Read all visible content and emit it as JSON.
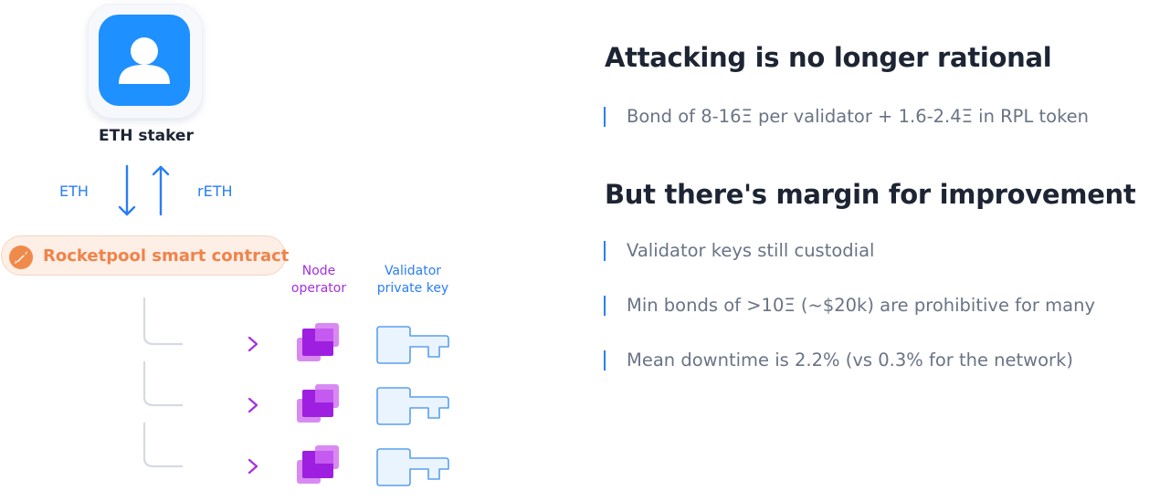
{
  "diagram": {
    "staker_label": "ETH staker",
    "eth_label": "ETH",
    "reth_label": "rETH",
    "contract_label": "Rocketpool smart contract",
    "node_operator_header": "Node\noperator",
    "validator_key_header": "Validator\nprivate key",
    "rows": 3,
    "colors": {
      "blue": "#2a7ef3",
      "avatar_blue": "#1e90ff",
      "orange": "#f0834a",
      "purple": "#a52fe0",
      "key_fill": "#eaf4ff"
    }
  },
  "panel": {
    "heading_1": "Attacking is no longer rational",
    "bullets_1": [
      "Bond of 8-16Ξ per validator + 1.6-2.4Ξ in RPL token"
    ],
    "heading_2": "But there's margin for improvement",
    "bullets_2": [
      "Validator keys still custodial",
      "Min bonds of >10Ξ (~$20k) are prohibitive for many",
      "Mean downtime is 2.2% (vs 0.3% for the network)"
    ]
  }
}
